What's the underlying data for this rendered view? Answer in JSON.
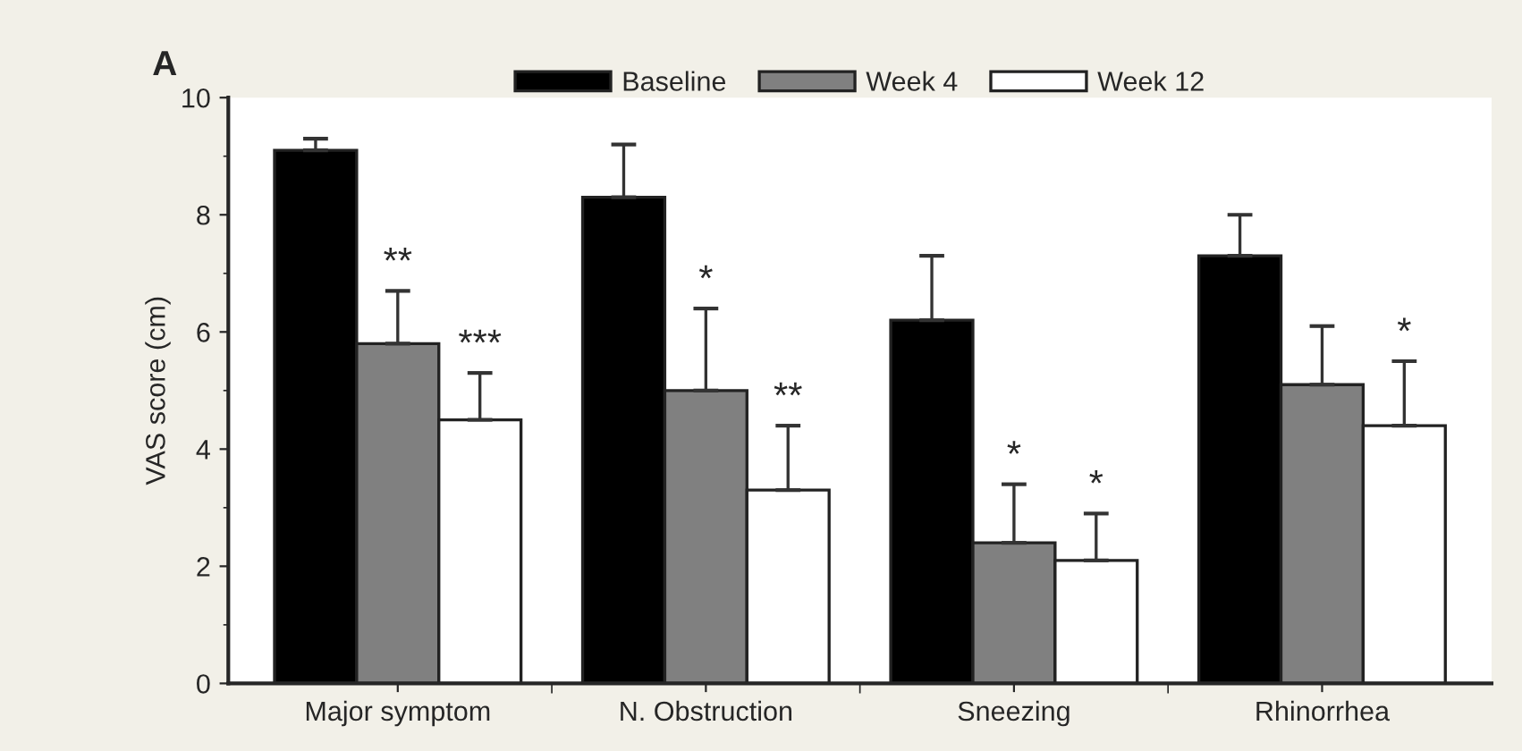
{
  "chart_data": {
    "type": "bar",
    "title": "A",
    "ylabel": "VAS score (cm)",
    "categories": [
      "Major symptom",
      "N. Obstruction",
      "Sneezing",
      "Rhinorrhea"
    ],
    "series": [
      {
        "name": "Baseline",
        "color": "#000000",
        "values": [
          9.1,
          8.3,
          6.2,
          7.3
        ],
        "errors": [
          [
            9.1,
            9.3
          ],
          [
            8.3,
            9.2
          ],
          [
            6.2,
            7.3
          ],
          [
            7.3,
            8.0
          ]
        ]
      },
      {
        "name": "Week 4",
        "color": "#808080",
        "values": [
          5.8,
          5.0,
          2.4,
          5.1
        ],
        "errors": [
          [
            5.8,
            6.7
          ],
          [
            5.0,
            6.4
          ],
          [
            2.4,
            3.4
          ],
          [
            5.1,
            6.1
          ]
        ],
        "value_labels": [
          "**",
          "*",
          "*",
          null
        ]
      },
      {
        "name": "Week 12",
        "color": "#ffffff",
        "values": [
          4.5,
          3.3,
          2.1,
          4.4
        ],
        "errors": [
          [
            4.5,
            5.3
          ],
          [
            3.3,
            4.4
          ],
          [
            2.1,
            2.9
          ],
          [
            4.4,
            5.5
          ]
        ],
        "value_labels": [
          "***",
          "**",
          "*",
          "*"
        ]
      }
    ],
    "ylim": [
      0,
      10
    ],
    "yticks": [
      0,
      2,
      4,
      6,
      8,
      10
    ],
    "grid": false,
    "legend": "top"
  }
}
